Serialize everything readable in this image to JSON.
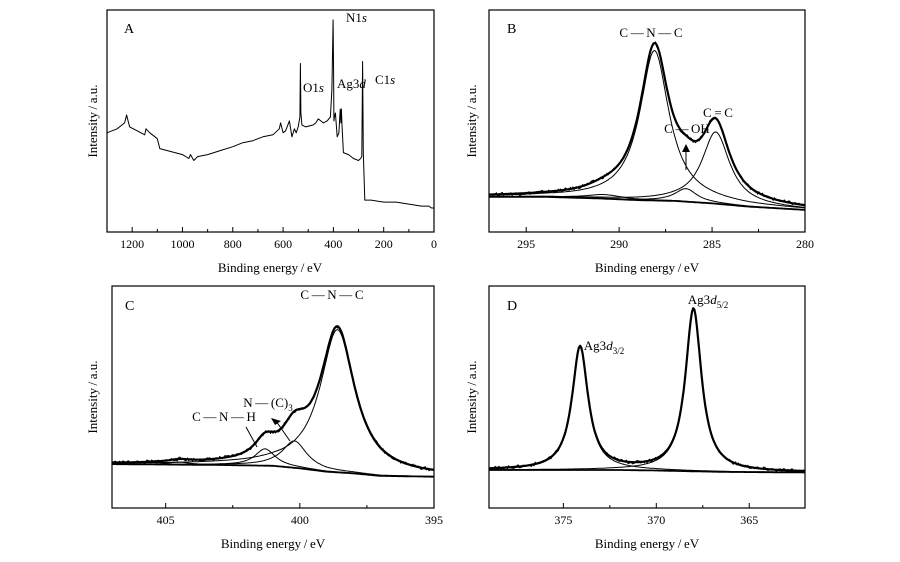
{
  "chart_data": [
    {
      "type": "line",
      "panel": "A",
      "xlabel": "Binding energy / eV",
      "ylabel": "Intensity / a.u.",
      "xlim": [
        1300,
        0
      ],
      "xticks": [
        1200,
        1000,
        800,
        600,
        400,
        200,
        0
      ],
      "ylim": [
        0,
        100
      ],
      "series": [
        {
          "role": "spectrum",
          "x": [
            1300,
            1260,
            1230,
            1222,
            1210,
            1180,
            1150,
            1145,
            1130,
            1100,
            1090,
            1060,
            1030,
            1000,
            975,
            968,
            955,
            940,
            900,
            850,
            800,
            760,
            720,
            700,
            680,
            640,
            615,
            610,
            600,
            590,
            575,
            565,
            555,
            548,
            540,
            533,
            531,
            529,
            525,
            510,
            480,
            470,
            460,
            440,
            425,
            412,
            406,
            401,
            399,
            398,
            396,
            392,
            385,
            378,
            373,
            370,
            368,
            366,
            360,
            340,
            320,
            300,
            292,
            287,
            284,
            281,
            275,
            250,
            200,
            150,
            100,
            50,
            20,
            10,
            0
          ],
          "y": [
            40,
            42,
            45,
            49,
            43,
            41,
            39,
            42,
            40,
            37,
            32,
            31,
            30,
            29,
            27,
            29,
            26,
            28,
            29,
            31,
            33,
            35,
            36,
            37,
            38,
            39,
            42,
            45,
            40,
            41,
            46,
            38,
            42,
            40,
            43,
            48,
            75,
            50,
            44,
            43,
            44,
            45,
            47,
            45,
            46,
            48,
            62,
            97,
            70,
            46,
            48,
            50,
            38,
            40,
            52,
            45,
            52,
            45,
            30,
            29,
            27,
            26,
            27,
            28,
            76,
            30,
            6,
            6,
            5,
            5,
            4,
            3,
            3,
            2,
            2
          ]
        }
      ],
      "annotations": [
        {
          "label": "N1s",
          "x": 398
        },
        {
          "label": "O1s",
          "x": 531
        },
        {
          "label": "Ag3d",
          "x": 368
        },
        {
          "label": "C1s",
          "x": 284
        }
      ]
    },
    {
      "type": "line",
      "panel": "B",
      "xlabel": "Binding energy / eV",
      "ylabel": "Intensity / a.u.",
      "xlim": [
        297,
        280
      ],
      "xticks": [
        295,
        290,
        285,
        280
      ],
      "ylim": [
        0,
        100
      ],
      "series": [
        {
          "role": "component",
          "shape": "lorentz",
          "center": 288.1,
          "amplitude": 92,
          "width": 0.95
        },
        {
          "role": "component",
          "shape": "lorentz",
          "center": 286.4,
          "amplitude": 8,
          "width": 0.7
        },
        {
          "role": "component",
          "shape": "lorentz",
          "center": 284.8,
          "amplitude": 44,
          "width": 0.9
        },
        {
          "role": "component",
          "shape": "lorentz",
          "center": 290.8,
          "amplitude": 2.5,
          "width": 1.2
        },
        {
          "role": "envelope",
          "shape": "sum"
        },
        {
          "role": "background",
          "x": [
            297,
            294,
            291,
            289,
            287,
            285,
            283,
            280
          ],
          "y": [
            5,
            5,
            4,
            3,
            2.5,
            1,
            -1,
            -3
          ]
        }
      ],
      "annotations": [
        {
          "label": "C — N — C",
          "x": 288.1
        },
        {
          "label": "C — OH",
          "x": 286.4
        },
        {
          "label": "C = C",
          "x": 284.8
        }
      ]
    },
    {
      "type": "line",
      "panel": "C",
      "xlabel": "Binding energy / eV",
      "ylabel": "Intensity / a.u.",
      "xlim": [
        407,
        395
      ],
      "xticks": [
        405,
        400,
        395
      ],
      "ylim": [
        0,
        100
      ],
      "series": [
        {
          "role": "component",
          "shape": "lorentz",
          "center": 398.6,
          "amplitude": 85,
          "width": 0.78
        },
        {
          "role": "component",
          "shape": "lorentz",
          "center": 400.2,
          "amplitude": 16,
          "width": 0.55
        },
        {
          "role": "component",
          "shape": "lorentz",
          "center": 401.3,
          "amplitude": 10,
          "width": 0.45
        },
        {
          "role": "component",
          "shape": "lorentz",
          "center": 404.5,
          "amplitude": 1.5,
          "width": 0.5
        },
        {
          "role": "envelope",
          "shape": "sum"
        },
        {
          "role": "background",
          "x": [
            407,
            403,
            401,
            400,
            399,
            398,
            397,
            395
          ],
          "y": [
            3.5,
            3,
            2.5,
            1,
            -1,
            -2,
            -3.5,
            -4
          ]
        }
      ],
      "annotations": [
        {
          "label": "C — N — C",
          "x": 398.6
        },
        {
          "label": "N — (C)",
          "sub": "3",
          "x": 400.2
        },
        {
          "label": "C — N — H",
          "x": 401.3
        }
      ]
    },
    {
      "type": "line",
      "panel": "D",
      "xlabel": "Binding energy / eV",
      "ylabel": "Intensity / a.u.",
      "xlim": [
        379,
        362
      ],
      "xticks": [
        375,
        370,
        365
      ],
      "ylim": [
        0,
        100
      ],
      "series": [
        {
          "role": "component",
          "shape": "lorentz",
          "center": 374.1,
          "amplitude": 75,
          "width": 0.52
        },
        {
          "role": "component",
          "shape": "lorentz",
          "center": 368.0,
          "amplitude": 99,
          "width": 0.52
        },
        {
          "role": "envelope",
          "shape": "sum"
        },
        {
          "role": "background",
          "x": [
            379,
            375,
            372,
            370,
            368,
            366,
            362
          ],
          "y": [
            0,
            0,
            0,
            -0.3,
            -0.8,
            -1.2,
            -1.5
          ]
        }
      ],
      "annotations": [
        {
          "label": "Ag3",
          "italic": "d",
          "sub": "3/2",
          "x": 374.1
        },
        {
          "label": "Ag3",
          "italic": "d",
          "sub": "5/2",
          "x": 368.0
        }
      ]
    }
  ]
}
